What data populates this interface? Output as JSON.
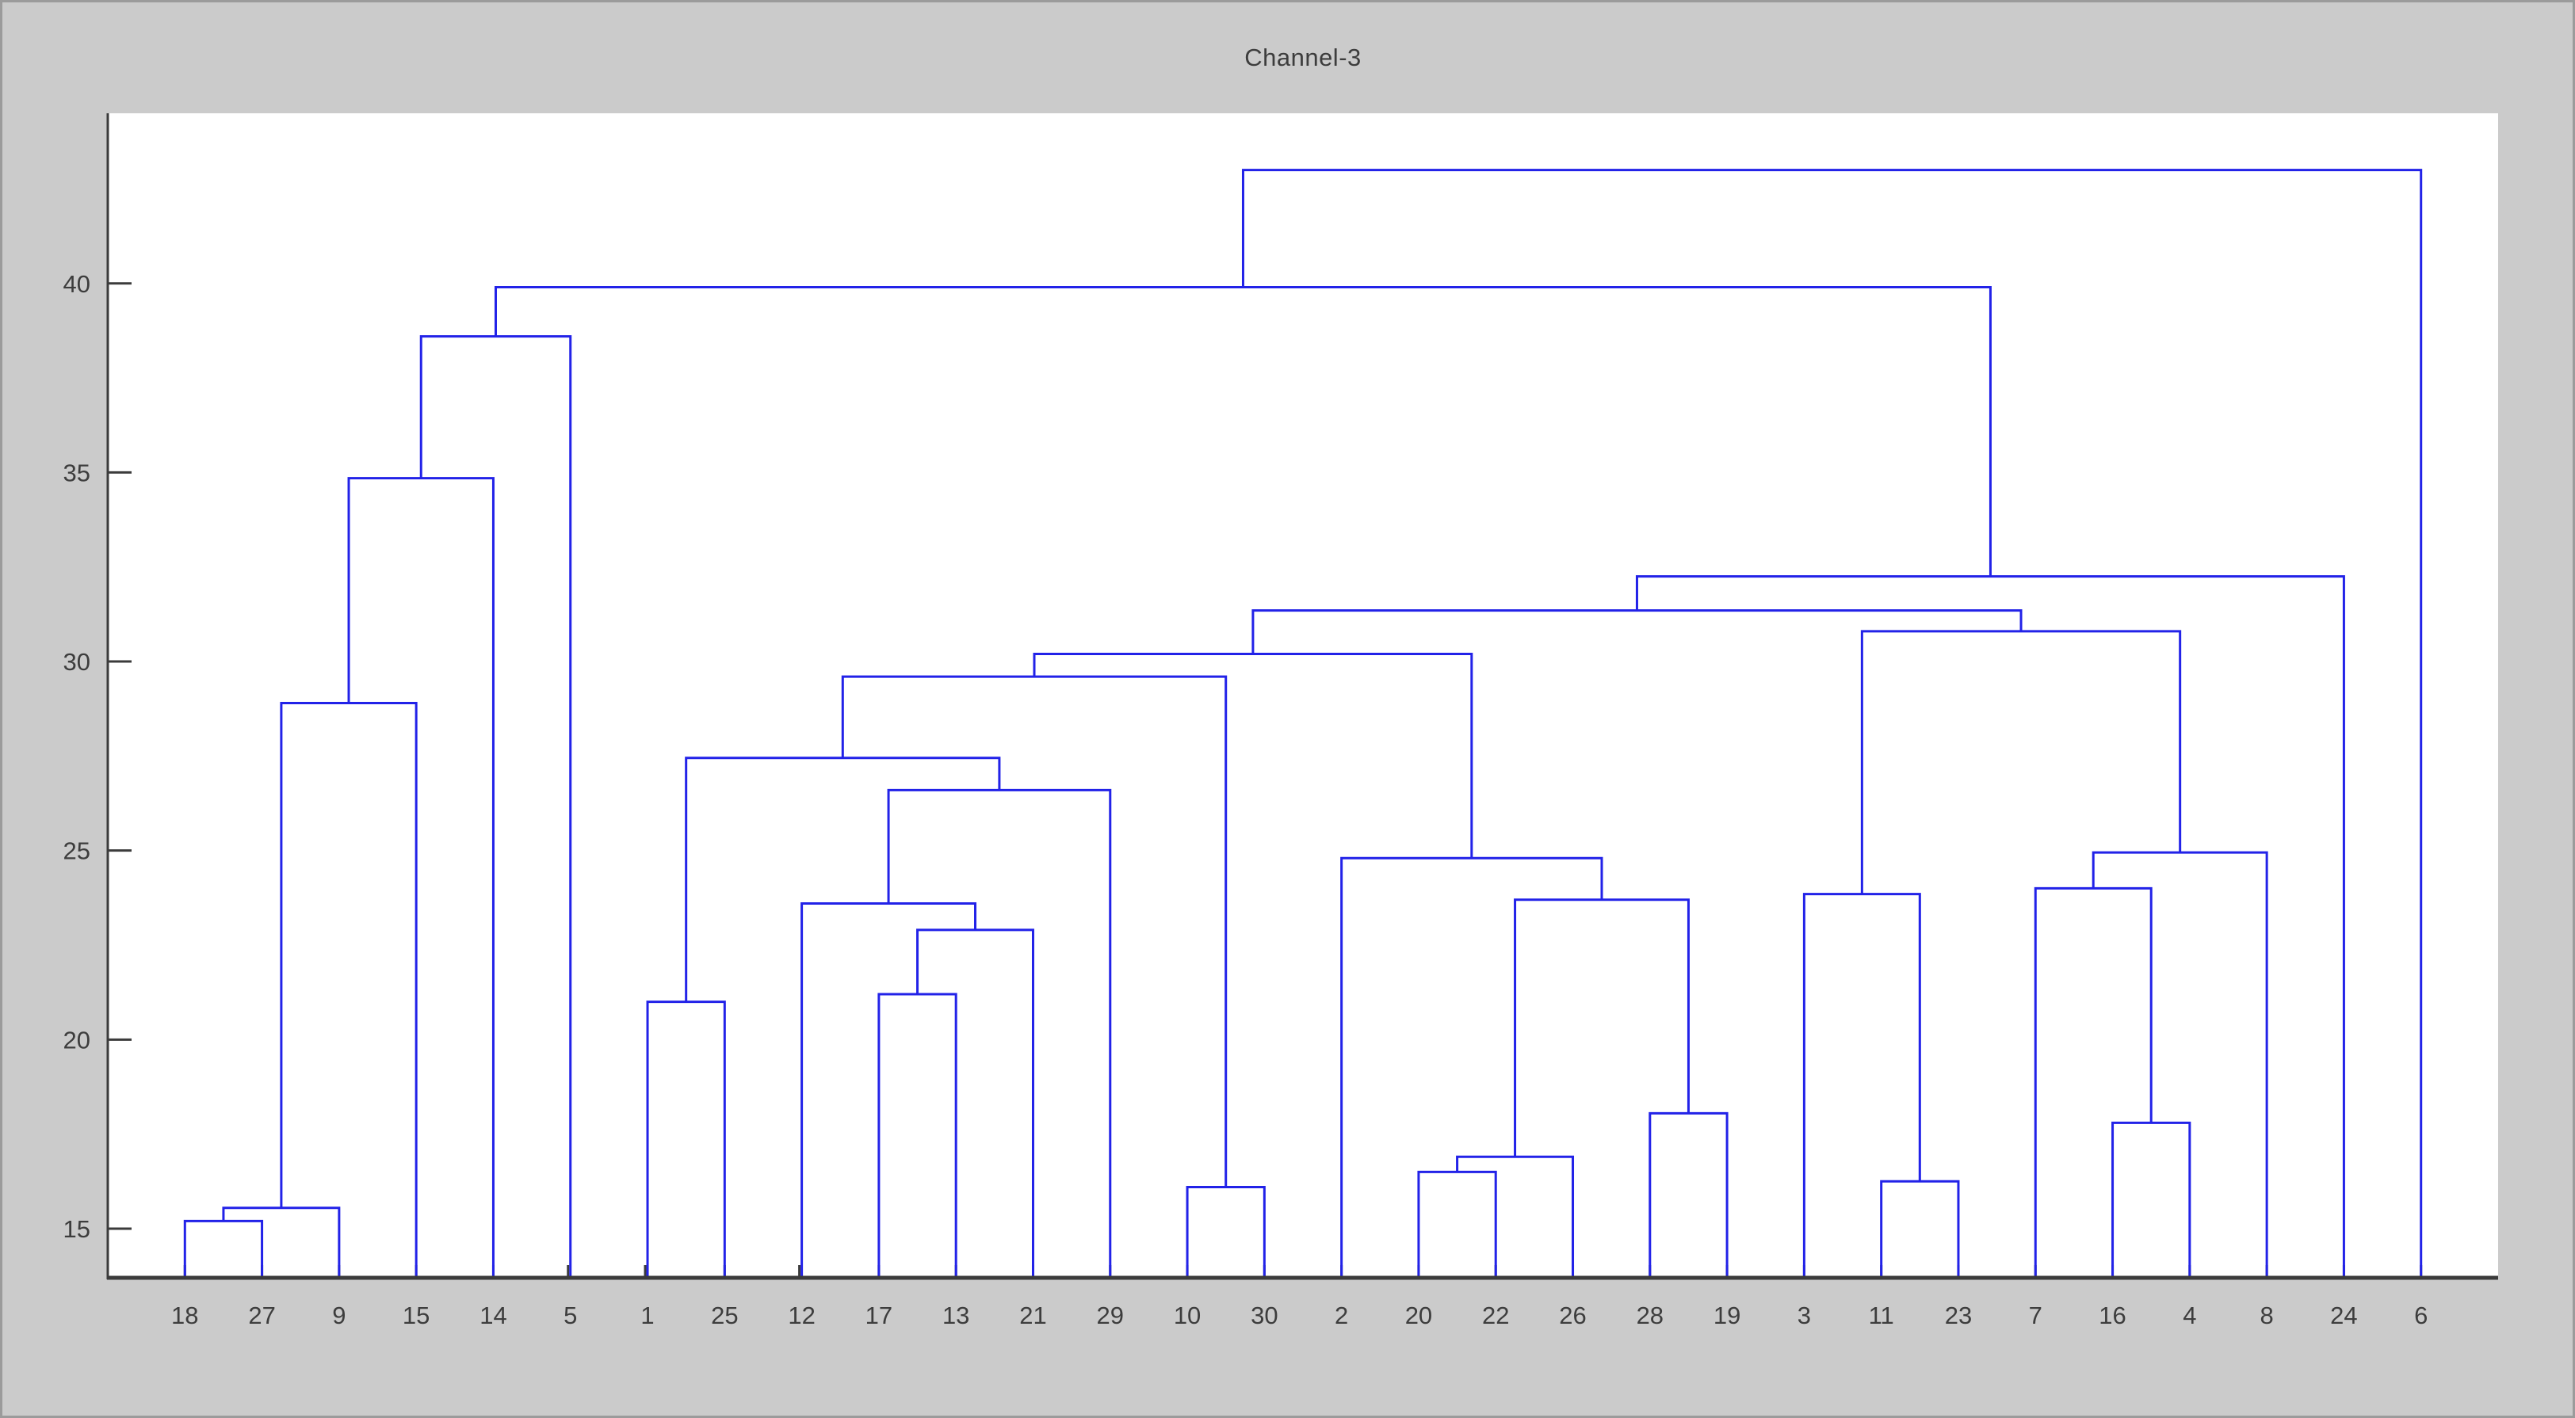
{
  "window": {
    "background_color": "#cbcbcb",
    "frame_color": "#9b9b9b"
  },
  "chart_data": {
    "type": "dendrogram",
    "title": "Channel-3",
    "xlabel": "",
    "ylabel": "",
    "leaves": [
      "18",
      "27",
      "9",
      "15",
      "14",
      "5",
      "1",
      "25",
      "12",
      "17",
      "13",
      "21",
      "29",
      "10",
      "30",
      "2",
      "20",
      "22",
      "26",
      "28",
      "19",
      "3",
      "11",
      "23",
      "7",
      "16",
      "4",
      "8",
      "24",
      "6"
    ],
    "merges": [
      [
        "18",
        "27",
        15.2
      ],
      [
        "#0",
        "9",
        15.55
      ],
      [
        "#1",
        "15",
        28.9
      ],
      [
        "#2",
        "14",
        34.85
      ],
      [
        "#3",
        "5",
        38.6
      ],
      [
        "1",
        "25",
        21.0
      ],
      [
        "17",
        "13",
        21.2
      ],
      [
        "#6",
        "21",
        22.9
      ],
      [
        "12",
        "#7",
        23.6
      ],
      [
        "#8",
        "29",
        26.6
      ],
      [
        "#5",
        "#9",
        27.45
      ],
      [
        "10",
        "30",
        16.1
      ],
      [
        "#10",
        "#11",
        29.6
      ],
      [
        "20",
        "22",
        16.5
      ],
      [
        "#13",
        "26",
        16.9
      ],
      [
        "28",
        "19",
        18.05
      ],
      [
        "#14",
        "#15",
        23.7
      ],
      [
        "2",
        "#16",
        24.8
      ],
      [
        "#12",
        "#17",
        30.2
      ],
      [
        "11",
        "23",
        16.25
      ],
      [
        "3",
        "#19",
        23.85
      ],
      [
        "16",
        "4",
        17.8
      ],
      [
        "7",
        "#21",
        24.0
      ],
      [
        "#22",
        "8",
        24.95
      ],
      [
        "#20",
        "#23",
        30.8
      ],
      [
        "#18",
        "#24",
        31.35
      ],
      [
        "#25",
        "24",
        32.25
      ],
      [
        "#4",
        "#26",
        39.9
      ],
      [
        "#27",
        "6",
        43.0
      ]
    ],
    "yticks": [
      15,
      20,
      25,
      30,
      35,
      40
    ],
    "ylim": [
      13.7,
      44.5
    ],
    "xlim": [
      0,
      31
    ],
    "grid": false,
    "legend_position": "none",
    "line_color": "#2222e8",
    "axis_color": "#3b3b3b",
    "tick_label_color": "#3d3d3d",
    "plot_background": "#ffffff"
  }
}
